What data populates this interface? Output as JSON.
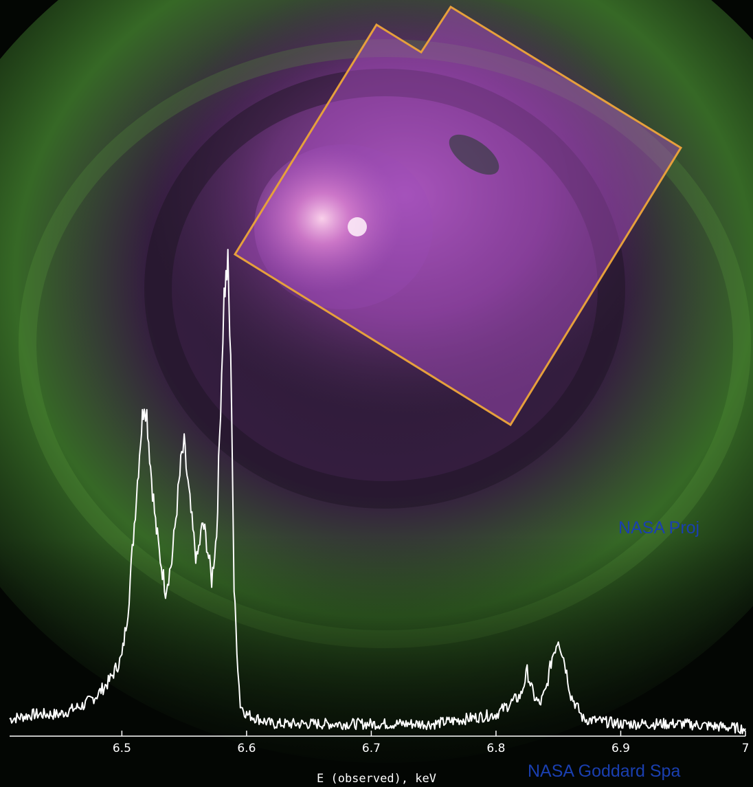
{
  "credits": {
    "line_1": "NASA Proj",
    "line_2": "NASA Goddard Spa"
  },
  "colors": {
    "background": "#030603",
    "nebula_green": "#3f7a2c",
    "nebula_purple": "#7a3a8a",
    "inset_fill": "#b050c8",
    "inset_border": "#e6a03c",
    "spectrum": "#ffffff",
    "credit_text": "#1a3fb0"
  },
  "chart_data": {
    "type": "line",
    "title": "",
    "xlabel": "E (observed), keV",
    "ylabel": "",
    "xlim": [
      6.41,
      7.0
    ],
    "ylim": [
      0,
      100
    ],
    "xticks": [
      6.5,
      6.6,
      6.7,
      6.8,
      6.9,
      7
    ],
    "xtick_labels": [
      "6.5",
      "6.6",
      "6.7",
      "6.8",
      "6.9",
      "7"
    ],
    "grid": false,
    "legend": "none",
    "series": [
      {
        "x": [
          6.41,
          6.43,
          6.45,
          6.47,
          6.48,
          6.49,
          6.5,
          6.505,
          6.51,
          6.515,
          6.518,
          6.52,
          6.523,
          6.527,
          6.53,
          6.535,
          6.54,
          6.545,
          6.548,
          6.55,
          6.553,
          6.557,
          6.56,
          6.565,
          6.568,
          6.572,
          6.576,
          6.58,
          6.582,
          6.585,
          6.588,
          6.59,
          6.593,
          6.595,
          6.6,
          6.62,
          6.65,
          6.7,
          6.75,
          6.8,
          6.82,
          6.825,
          6.83,
          6.835,
          6.84,
          6.845,
          6.85,
          6.855,
          6.86,
          6.87,
          6.9,
          6.95,
          7.0
        ],
        "y": [
          3,
          4,
          4,
          6,
          8,
          11,
          16,
          26,
          44,
          62,
          70,
          67,
          56,
          44,
          38,
          30,
          36,
          50,
          58,
          60,
          52,
          42,
          36,
          44,
          40,
          32,
          42,
          76,
          92,
          98,
          70,
          30,
          14,
          6,
          4,
          2,
          2,
          2,
          2,
          4,
          8,
          13,
          8,
          6,
          9,
          16,
          20,
          15,
          8,
          3,
          2,
          2,
          1
        ]
      }
    ]
  }
}
